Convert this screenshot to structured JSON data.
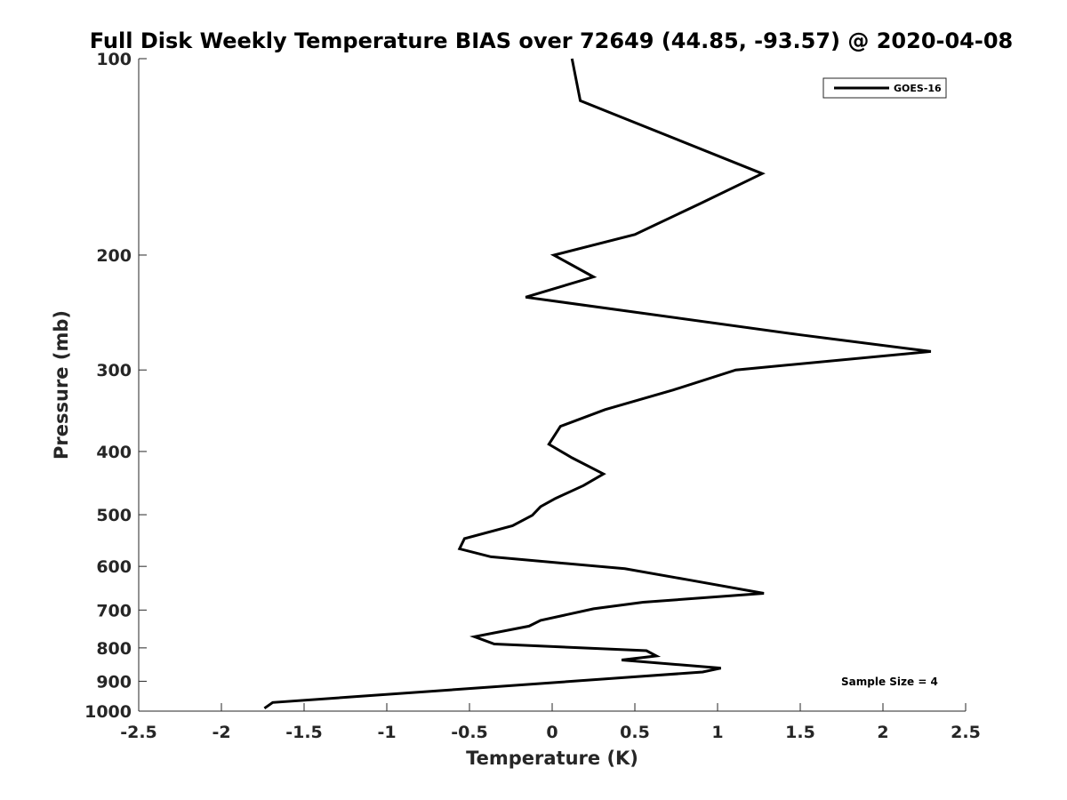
{
  "chart_data": {
    "type": "line",
    "title": "Full Disk Weekly Temperature BIAS over 72649 (44.85, -93.57) @ 2020-04-08",
    "xlabel": "Temperature (K)",
    "ylabel": "Pressure (mb)",
    "xlim": [
      -2.5,
      2.5
    ],
    "ylim": [
      100,
      1000
    ],
    "yscale": "log",
    "y_reversed": true,
    "x_ticks": [
      -2.5,
      -2,
      -1.5,
      -1,
      -0.5,
      0,
      0.5,
      1,
      1.5,
      2,
      2.5
    ],
    "x_tick_labels": [
      "-2.5",
      "-2",
      "-1.5",
      "-1",
      "-0.5",
      "0",
      "0.5",
      "1",
      "1.5",
      "2",
      "2.5"
    ],
    "y_ticks": [
      100,
      200,
      300,
      400,
      500,
      600,
      700,
      800,
      900,
      1000
    ],
    "y_tick_labels": [
      "100",
      "200",
      "300",
      "400",
      "500",
      "600",
      "700",
      "800",
      "900",
      "1000"
    ],
    "legend": {
      "position": "top-right",
      "entries": [
        "GOES-16"
      ]
    },
    "annotation": "Sample Size = 4",
    "series": [
      {
        "name": "GOES-16",
        "color": "#000000",
        "x": [
          0.12,
          0.17,
          1.27,
          0.89,
          0.5,
          0.01,
          0.25,
          -0.16,
          1.5,
          2.29,
          1.11,
          0.73,
          0.32,
          0.05,
          -0.02,
          0.12,
          0.31,
          0.19,
          0.02,
          -0.07,
          -0.12,
          -0.24,
          -0.53,
          -0.56,
          -0.37,
          0.44,
          0.82,
          1.28,
          0.55,
          0.25,
          -0.07,
          -0.14,
          -0.47,
          -0.35,
          0.57,
          0.63,
          0.42,
          1.02,
          0.91,
          -1.69,
          -1.74
        ],
        "y": [
          100,
          116,
          150,
          167,
          186,
          200,
          216,
          232,
          265,
          281,
          300,
          322,
          345,
          366,
          390,
          409,
          433,
          451,
          472,
          486,
          501,
          520,
          544,
          564,
          580,
          605,
          629,
          660,
          681,
          697,
          726,
          741,
          769,
          789,
          808,
          823,
          835,
          859,
          871,
          970,
          990
        ]
      }
    ]
  }
}
